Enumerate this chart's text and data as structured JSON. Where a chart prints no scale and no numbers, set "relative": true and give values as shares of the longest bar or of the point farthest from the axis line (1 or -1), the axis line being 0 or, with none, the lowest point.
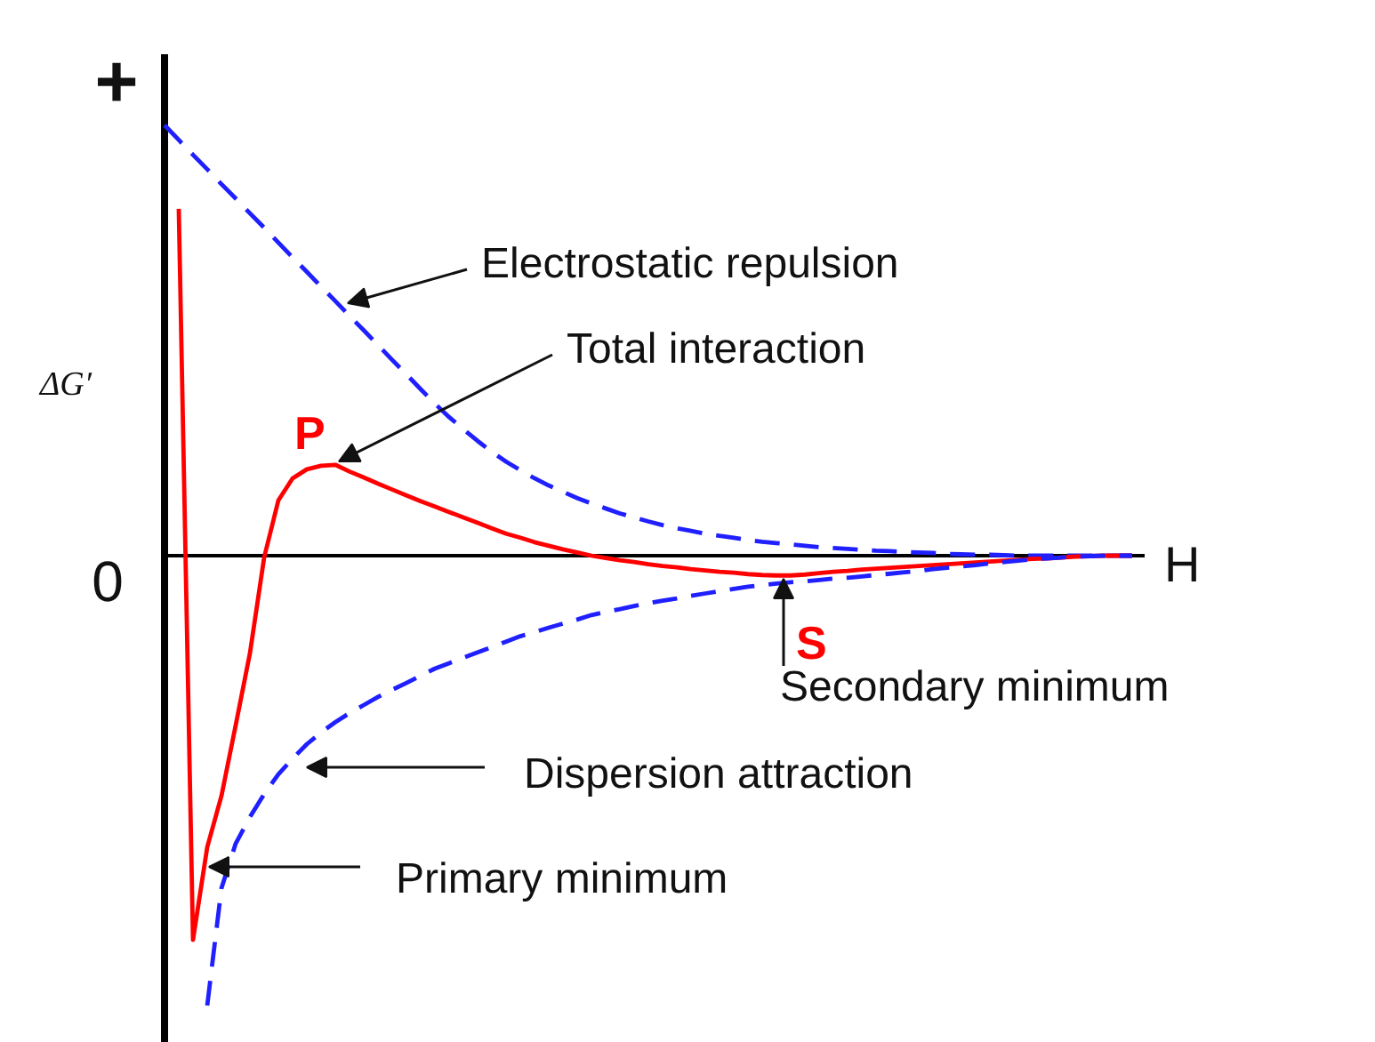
{
  "chart_data": {
    "type": "line",
    "relative": true,
    "ylabel": "ΔG′",
    "xlabel": "H",
    "categories": [
      null,
      null,
      null,
      null,
      null,
      null,
      null,
      null,
      null,
      null,
      null,
      null,
      null,
      null,
      null,
      null,
      null,
      null,
      null,
      null,
      null,
      null,
      null,
      null,
      null,
      null,
      null,
      null,
      null,
      null,
      null,
      null,
      null,
      null,
      null,
      null,
      null,
      null,
      null,
      null,
      null,
      null,
      null,
      null,
      null,
      null,
      null,
      null,
      null,
      null,
      null,
      null,
      null,
      null,
      null,
      null,
      null,
      null,
      null,
      null,
      null,
      null,
      null,
      null,
      null,
      null,
      null,
      null,
      null
    ],
    "series": [
      {
        "color": "#1f1fff",
        "line_style": "dashed",
        "values": [
          0.957,
          0.924,
          0.891,
          0.859,
          0.826,
          0.794,
          0.761,
          0.729,
          0.696,
          0.663,
          0.631,
          0.598,
          0.566,
          0.533,
          0.501,
          0.468,
          0.435,
          0.403,
          0.37,
          0.338,
          0.308,
          0.281,
          0.255,
          0.231,
          0.209,
          0.19,
          0.172,
          0.156,
          0.142,
          0.128,
          0.116,
          0.105,
          0.094,
          0.085,
          0.076,
          0.068,
          0.061,
          0.055,
          0.049,
          0.044,
          0.04,
          0.035,
          0.031,
          0.028,
          0.025,
          0.022,
          0.019,
          0.017,
          0.015,
          0.013,
          0.011,
          0.01,
          0.008,
          0.007,
          0.006,
          0.004,
          0.003,
          0.002,
          0.002,
          0.001,
          0,
          0,
          0,
          0,
          0,
          0,
          0,
          0,
          0
        ]
      },
      {
        "color": "#ff0000",
        "line_style": "solid",
        "values": [
          null,
          0.771,
          -0.854,
          -0.648,
          -0.534,
          -0.377,
          -0.217,
          -0.004,
          0.123,
          0.172,
          0.192,
          0.2,
          0.202,
          0.187,
          0.174,
          0.16,
          0.147,
          0.134,
          0.121,
          0.109,
          0.097,
          0.085,
          0.073,
          0.061,
          0.049,
          0.04,
          0.03,
          0.022,
          0.014,
          0.007,
          0,
          -0.005,
          -0.01,
          -0.014,
          -0.019,
          -0.023,
          -0.026,
          -0.03,
          -0.033,
          -0.036,
          -0.038,
          -0.041,
          -0.043,
          -0.044,
          -0.044,
          -0.042,
          -0.039,
          -0.036,
          -0.034,
          -0.031,
          -0.029,
          -0.027,
          -0.025,
          -0.023,
          -0.021,
          -0.019,
          -0.017,
          -0.015,
          -0.013,
          -0.011,
          -0.009,
          -0.007,
          -0.006,
          -0.004,
          -0.002,
          -0.001,
          0,
          0,
          0
        ]
      },
      {
        "color": "#1f1fff",
        "line_style": "dashed",
        "values": [
          null,
          null,
          null,
          -1.0,
          -0.739,
          -0.64,
          -0.581,
          -0.53,
          -0.486,
          -0.451,
          -0.419,
          -0.393,
          -0.37,
          -0.35,
          -0.332,
          -0.314,
          -0.298,
          -0.283,
          -0.267,
          -0.251,
          -0.239,
          -0.227,
          -0.215,
          -0.203,
          -0.191,
          -0.179,
          -0.17,
          -0.16,
          -0.151,
          -0.142,
          -0.132,
          -0.125,
          -0.119,
          -0.112,
          -0.106,
          -0.1,
          -0.095,
          -0.089,
          -0.084,
          -0.079,
          -0.074,
          -0.069,
          -0.066,
          -0.062,
          -0.059,
          -0.057,
          -0.054,
          -0.051,
          -0.049,
          -0.046,
          -0.043,
          -0.04,
          -0.037,
          -0.034,
          -0.03,
          -0.027,
          -0.024,
          -0.021,
          -0.017,
          -0.014,
          -0.011,
          -0.008,
          -0.006,
          -0.004,
          -0.002,
          -0.001,
          0,
          0,
          0
        ]
      }
    ],
    "annotations": [
      "+",
      "Electrostatic repulsion",
      "Total interaction",
      "P",
      "0",
      "S",
      "Secondary minimum",
      "Dispersion attraction",
      "Primary minimum"
    ]
  }
}
